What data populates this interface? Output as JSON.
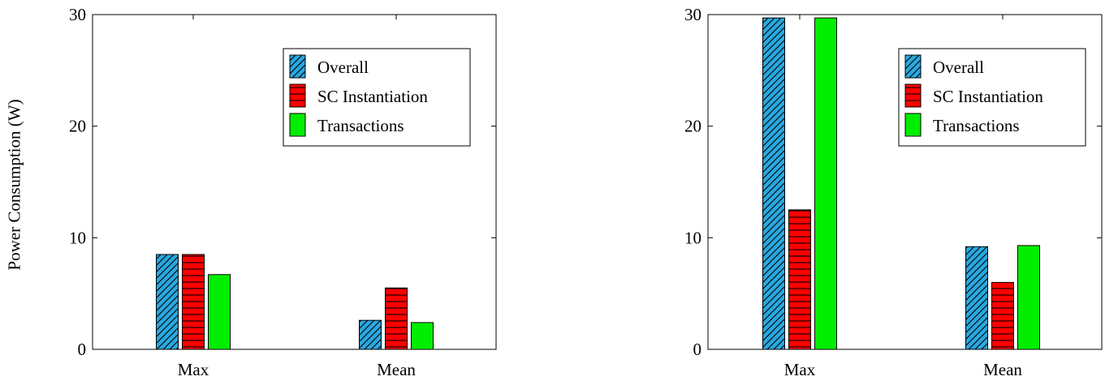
{
  "chart_data": [
    {
      "type": "bar",
      "ylabel": "Power Consumption (W)",
      "ylim": [
        0,
        30
      ],
      "yticks": [
        "0",
        "10",
        "20",
        "30"
      ],
      "categories": [
        "Max",
        "Mean"
      ],
      "series": [
        {
          "name": "Overall",
          "values": [
            8.5,
            2.6
          ],
          "color": "#29a8e0",
          "pattern": "diagonal-hatch"
        },
        {
          "name": "SC Instantiation",
          "values": [
            8.5,
            5.5
          ],
          "color": "#ff0000",
          "pattern": "horizontal-lines"
        },
        {
          "name": "Transactions",
          "values": [
            6.7,
            2.4
          ],
          "color": "#00ee00",
          "pattern": "solid"
        }
      ],
      "legend": "top-right",
      "grid": false
    },
    {
      "type": "bar",
      "ylim": [
        0,
        30
      ],
      "yticks": [
        "0",
        "10",
        "20",
        "30"
      ],
      "categories": [
        "Max",
        "Mean"
      ],
      "series": [
        {
          "name": "Overall",
          "values": [
            29.7,
            9.2
          ],
          "color": "#29a8e0",
          "pattern": "diagonal-hatch"
        },
        {
          "name": "SC Instantiation",
          "values": [
            12.5,
            6.0
          ],
          "color": "#ff0000",
          "pattern": "horizontal-lines"
        },
        {
          "name": "Transactions",
          "values": [
            29.7,
            9.3
          ],
          "color": "#00ee00",
          "pattern": "solid"
        }
      ],
      "legend": "top-right",
      "grid": false
    }
  ]
}
